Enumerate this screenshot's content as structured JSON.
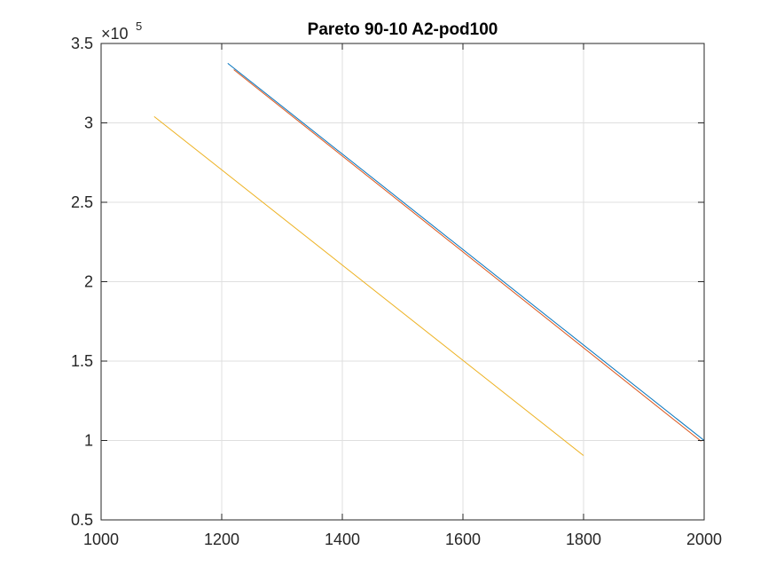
{
  "chart_data": {
    "type": "line",
    "title": "Pareto 90-10 A2-pod100",
    "xlabel": "",
    "ylabel": "",
    "xlim": [
      1000,
      2000
    ],
    "ylim": [
      50000,
      350000
    ],
    "xticks": [
      1000,
      1200,
      1400,
      1600,
      1800,
      2000
    ],
    "yticks": [
      50000,
      100000,
      150000,
      200000,
      250000,
      300000,
      350000
    ],
    "xtick_labels": [
      "1000",
      "1200",
      "1400",
      "1600",
      "1800",
      "2000"
    ],
    "ytick_labels": [
      "0.5",
      "1",
      "1.5",
      "2",
      "2.5",
      "3",
      "3.5"
    ],
    "y_exponent": {
      "base": "×10",
      "power": "5"
    },
    "grid": true,
    "series": [
      {
        "color": "#0072BD",
        "x": [
          1210,
          2000
        ],
        "y": [
          337500,
          100000
        ]
      },
      {
        "color": "#D95319",
        "x": [
          1220,
          1995
        ],
        "y": [
          333500,
          99500
        ]
      },
      {
        "color": "#EDB120",
        "x": [
          1088,
          1800
        ],
        "y": [
          304000,
          90500
        ]
      }
    ]
  }
}
